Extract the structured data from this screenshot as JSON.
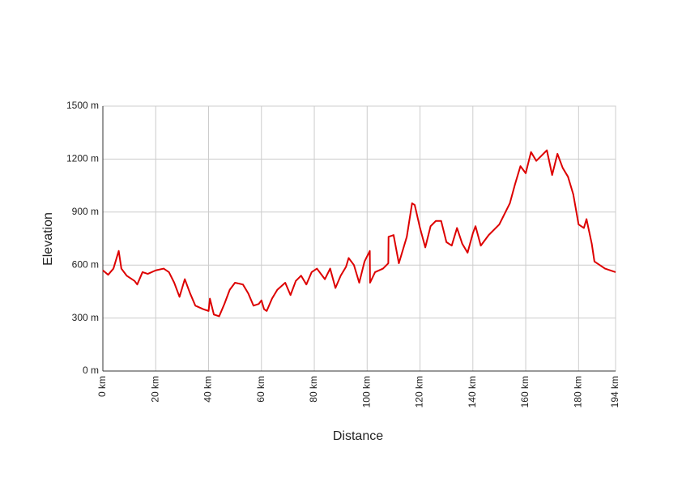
{
  "chart_data": {
    "type": "line",
    "x_label": "Distance",
    "y_label": "Elevation",
    "color": "#dd0000",
    "grid": true,
    "xlim": [
      0,
      194
    ],
    "ylim": [
      0,
      1500
    ],
    "xticks": [
      {
        "value": 0,
        "label": "0 km"
      },
      {
        "value": 20,
        "label": "20 km"
      },
      {
        "value": 40,
        "label": "40 km"
      },
      {
        "value": 60,
        "label": "60 km"
      },
      {
        "value": 80,
        "label": "80 km"
      },
      {
        "value": 100,
        "label": "100 km"
      },
      {
        "value": 120,
        "label": "120 km"
      },
      {
        "value": 140,
        "label": "140 km"
      },
      {
        "value": 160,
        "label": "160 km"
      },
      {
        "value": 180,
        "label": "180 km"
      },
      {
        "value": 194,
        "label": "194 km"
      }
    ],
    "yticks": [
      {
        "value": 0,
        "label": "0 m"
      },
      {
        "value": 300,
        "label": "300 m"
      },
      {
        "value": 600,
        "label": "600 m"
      },
      {
        "value": 900,
        "label": "900 m"
      },
      {
        "value": 1200,
        "label": "1200 m"
      },
      {
        "value": 1500,
        "label": "1500 m"
      }
    ],
    "x": [
      0,
      2,
      4,
      6,
      7,
      9,
      12,
      13,
      15,
      17,
      20,
      23,
      25,
      27,
      29,
      31,
      33,
      35,
      38,
      40,
      40.5,
      42,
      44,
      46,
      48,
      50,
      53,
      55,
      57,
      59,
      60,
      61,
      62,
      64,
      66,
      69,
      71,
      73,
      75,
      77,
      79,
      81,
      84,
      86,
      88,
      90,
      92,
      93,
      95,
      97,
      99,
      101,
      101.1,
      103,
      106,
      108,
      108.1,
      110,
      112,
      115,
      117,
      118,
      120,
      122,
      124,
      126,
      128,
      130,
      132,
      134,
      136,
      138,
      140,
      141,
      143,
      146,
      150,
      154,
      156,
      158,
      160,
      162,
      164,
      166,
      168,
      170,
      172,
      174,
      176,
      178,
      180,
      182,
      183,
      185,
      186,
      188,
      190,
      194
    ],
    "values": [
      570,
      545,
      580,
      680,
      580,
      540,
      510,
      490,
      560,
      550,
      570,
      580,
      560,
      500,
      420,
      520,
      440,
      370,
      350,
      340,
      410,
      320,
      310,
      380,
      460,
      500,
      490,
      440,
      370,
      380,
      400,
      350,
      340,
      410,
      460,
      500,
      430,
      510,
      540,
      490,
      560,
      580,
      520,
      580,
      470,
      540,
      590,
      640,
      600,
      500,
      620,
      680,
      500,
      560,
      580,
      610,
      760,
      770,
      610,
      760,
      950,
      940,
      810,
      700,
      820,
      850,
      850,
      730,
      710,
      810,
      720,
      670,
      780,
      820,
      710,
      770,
      830,
      950,
      1060,
      1160,
      1120,
      1240,
      1190,
      1220,
      1250,
      1110,
      1230,
      1150,
      1100,
      1000,
      830,
      810,
      860,
      720,
      620,
      600,
      580,
      560
    ]
  }
}
